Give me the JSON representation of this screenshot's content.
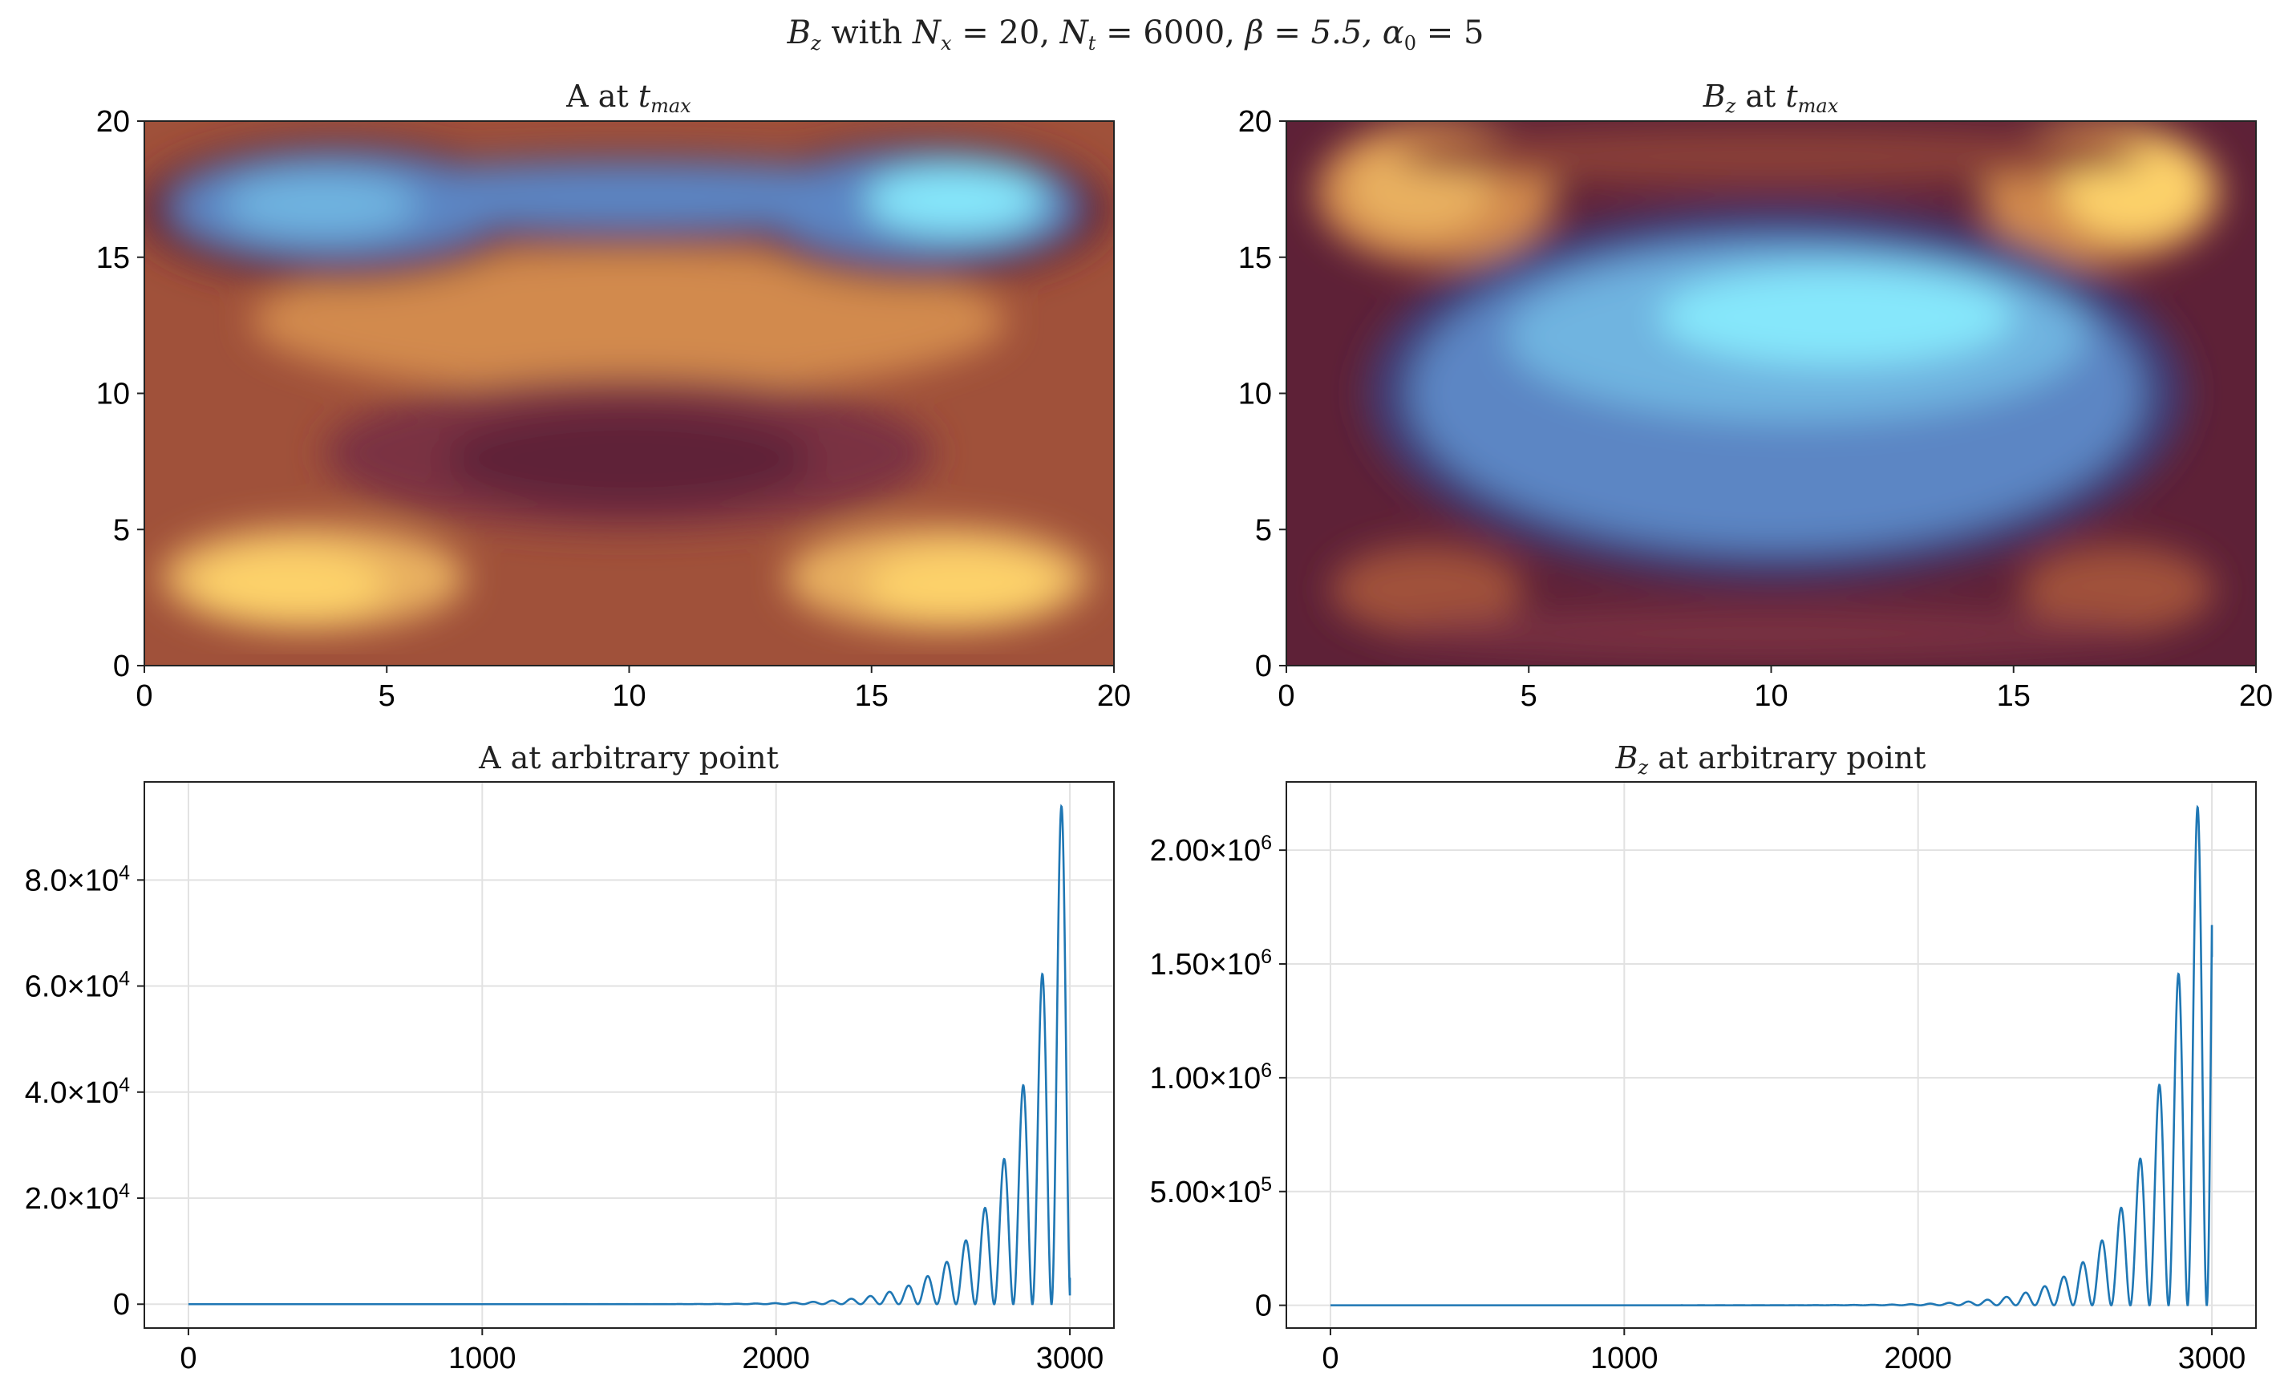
{
  "figure": {
    "suptitle_parts": {
      "bz_sym": "B",
      "bz_sub": "z",
      "with": " with ",
      "nx_sym": "N",
      "nx_sub": "x",
      "nx_val": " = 20, ",
      "nt_sym": "N",
      "nt_sub": "t",
      "nt_val": " = 6000, ",
      "beta": "β = 5.5, ",
      "alpha_sym": "α",
      "alpha_sub": "0",
      "alpha_val": " = 5"
    }
  },
  "panels": {
    "a_heatmap": {
      "title_main": "A at ",
      "title_t": "t",
      "title_sub": "max"
    },
    "bz_heatmap": {
      "title_b": "B",
      "title_bsub": "z",
      "title_mid": " at ",
      "title_t": "t",
      "title_sub": "max"
    },
    "a_line": {
      "title": "A at arbitrary point"
    },
    "bz_line": {
      "title_b": "B",
      "title_bsub": "z",
      "title_rest": " at arbitrary point"
    }
  },
  "ticks": {
    "heat_x": [
      "0",
      "5",
      "10",
      "15",
      "20"
    ],
    "heat_y": [
      "0",
      "5",
      "10",
      "15",
      "20"
    ],
    "time_x": [
      "0",
      "1000",
      "2000",
      "3000"
    ],
    "a_line_y": [
      {
        "label": "0",
        "mant": "",
        "exp": ""
      },
      {
        "label": "",
        "mant": "2.0×10",
        "exp": "4"
      },
      {
        "label": "",
        "mant": "4.0×10",
        "exp": "4"
      },
      {
        "label": "",
        "mant": "6.0×10",
        "exp": "4"
      },
      {
        "label": "",
        "mant": "8.0×10",
        "exp": "4"
      }
    ],
    "bz_line_y": [
      {
        "label": "0",
        "mant": "",
        "exp": ""
      },
      {
        "label": "",
        "mant": "5.00×10",
        "exp": "5"
      },
      {
        "label": "",
        "mant": "1.00×10",
        "exp": "6"
      },
      {
        "label": "",
        "mant": "1.50×10",
        "exp": "6"
      },
      {
        "label": "",
        "mant": "2.00×10",
        "exp": "6"
      }
    ]
  },
  "colors": {
    "line": "#1f77b4",
    "colormap": [
      "#5e2137",
      "#a0513a",
      "#d28a4d",
      "#fdd26b",
      "#86e7fb",
      "#5b86c4",
      "#5e2137"
    ]
  },
  "chart_data": [
    {
      "type": "heatmap",
      "title": "A at t_max",
      "xlim": [
        0,
        20
      ],
      "ylim": [
        0,
        20
      ],
      "xticks": [
        0,
        5,
        10,
        15,
        20
      ],
      "yticks": [
        0,
        5,
        10,
        15,
        20
      ],
      "grid": [
        20,
        20
      ],
      "value_range": [
        -1,
        1
      ],
      "features": [
        {
          "kind": "min",
          "x": 4.0,
          "y": 16.7,
          "value": -0.85
        },
        {
          "kind": "min",
          "x": 16.5,
          "y": 16.7,
          "value": -1.0
        },
        {
          "kind": "max",
          "x": 3.0,
          "y": 2.9,
          "value": 0.75
        },
        {
          "kind": "max",
          "x": 17.0,
          "y": 2.9,
          "value": 0.75
        },
        {
          "kind": "mid",
          "x": 10.0,
          "y": 6.8,
          "value": 0.0
        },
        {
          "kind": "mid",
          "x": 10.0,
          "y": 12.5,
          "value": 0.45
        }
      ]
    },
    {
      "type": "heatmap",
      "title": "B_z at t_max",
      "xlim": [
        0,
        20
      ],
      "ylim": [
        0,
        20
      ],
      "xticks": [
        0,
        5,
        10,
        15,
        20
      ],
      "yticks": [
        0,
        5,
        10,
        15,
        20
      ],
      "grid": [
        20,
        20
      ],
      "value_range": [
        -1,
        1
      ],
      "features": [
        {
          "kind": "min",
          "x": 12.0,
          "y": 13.0,
          "value": -1.0
        },
        {
          "kind": "min",
          "x": 10.0,
          "y": 7.0,
          "value": -0.55
        },
        {
          "kind": "max",
          "x": 2.5,
          "y": 17.0,
          "value": 0.7
        },
        {
          "kind": "max",
          "x": 17.8,
          "y": 17.0,
          "value": 0.8
        },
        {
          "kind": "max",
          "x": 2.5,
          "y": 3.0,
          "value": 0.35
        },
        {
          "kind": "max",
          "x": 17.8,
          "y": 3.0,
          "value": 0.35
        }
      ]
    },
    {
      "type": "line",
      "title": "A at arbitrary point",
      "xlim": [
        -150,
        3150
      ],
      "ylim": [
        -4500,
        98500
      ],
      "xticks": [
        0,
        1000,
        2000,
        3000
      ],
      "yticks": [
        0,
        20000,
        40000,
        60000,
        80000
      ],
      "peaks": [
        {
          "x": 2710,
          "y": 18000
        },
        {
          "x": 2775,
          "y": 27000
        },
        {
          "x": 2840,
          "y": 41000
        },
        {
          "x": 2905,
          "y": 62000
        },
        {
          "x": 2970,
          "y": 93500
        }
      ],
      "end": {
        "x": 3000,
        "y": 5000
      },
      "series": [
        {
          "values_description_start": 0,
          "peak_max": 93500
        }
      ]
    },
    {
      "type": "line",
      "title": "B_z at arbitrary point",
      "xlim": [
        -150,
        3150
      ],
      "ylim": [
        -100000,
        2300000
      ],
      "xticks": [
        0,
        1000,
        2000,
        3000
      ],
      "yticks": [
        0,
        500000,
        1000000,
        1500000,
        2000000
      ],
      "peaks": [
        {
          "x": 2690,
          "y": 420000
        },
        {
          "x": 2755,
          "y": 640000
        },
        {
          "x": 2820,
          "y": 960000
        },
        {
          "x": 2885,
          "y": 1450000
        },
        {
          "x": 2950,
          "y": 2180000
        }
      ],
      "end": {
        "x": 3000,
        "y": 1530000
      },
      "series": [
        {
          "values_description_start": 0,
          "peak_max": 2180000
        }
      ]
    }
  ]
}
